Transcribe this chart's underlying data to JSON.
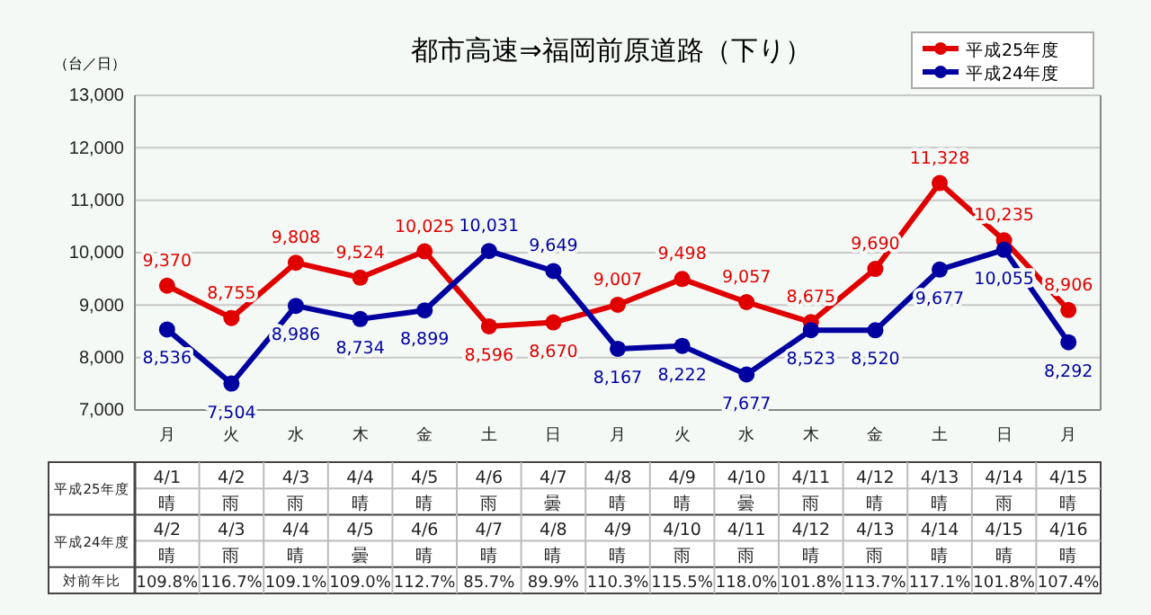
{
  "chart_data": [
    {
      "type": "line",
      "title": "都市高速⇒福岡前原道路（下り）",
      "ylabel": "（台／日）",
      "categories": [
        "月",
        "火",
        "水",
        "木",
        "金",
        "土",
        "日",
        "月",
        "火",
        "水",
        "木",
        "金",
        "土",
        "日",
        "月"
      ],
      "series": [
        {
          "name": "平成25年度",
          "color": "#e00000",
          "values": [
            9370,
            8755,
            9808,
            9524,
            10025,
            8596,
            8670,
            9007,
            9498,
            9057,
            8675,
            9690,
            11328,
            10235,
            8906
          ],
          "value_labels": [
            "9,370",
            "8,755",
            "9,808",
            "9,524",
            "10,025",
            "8,596",
            "8,670",
            "9,007",
            "9,498",
            "9,057",
            "8,675",
            "9,690",
            "11,328",
            "10,235",
            "8,906"
          ]
        },
        {
          "name": "平成24年度",
          "color": "#0000a0",
          "values": [
            8536,
            7504,
            8986,
            8734,
            8899,
            10031,
            9649,
            8167,
            8222,
            7677,
            8523,
            8520,
            9677,
            10055,
            8292
          ],
          "value_labels": [
            "8,536",
            "7,504",
            "8,986",
            "8,734",
            "8,899",
            "10,031",
            "9,649",
            "8,167",
            "8,222",
            "7,677",
            "8,523",
            "8,520",
            "9,677",
            "10,055",
            "8,292"
          ]
        }
      ],
      "ylim": [
        7000,
        13000
      ],
      "yticks": [
        {
          "value": 7000,
          "label": "7,000"
        },
        {
          "value": 8000,
          "label": "8,000"
        },
        {
          "value": 9000,
          "label": "9,000"
        },
        {
          "value": 10000,
          "label": "10,000"
        },
        {
          "value": 11000,
          "label": "11,000"
        },
        {
          "value": 12000,
          "label": "12,000"
        },
        {
          "value": 13000,
          "label": "13,000"
        }
      ],
      "grid": "y",
      "legend": "top right",
      "marker": "circle",
      "line_style": "solid"
    },
    {
      "type": "other",
      "y_categories": [
        "平成25年度",
        "平成24年度",
        "対前年比"
      ],
      "cell_labels": [
        [
          "4/1",
          "4/2",
          "4/3",
          "4/4",
          "4/5",
          "4/6",
          "4/7",
          "4/8",
          "4/9",
          "4/10",
          "4/11",
          "4/12",
          "4/13",
          "4/14",
          "4/15"
        ],
        [
          "晴",
          "雨",
          "雨",
          "晴",
          "晴",
          "雨",
          "曇",
          "晴",
          "晴",
          "曇",
          "雨",
          "晴",
          "晴",
          "雨",
          "晴"
        ],
        [
          "4/2",
          "4/3",
          "4/4",
          "4/5",
          "4/6",
          "4/7",
          "4/8",
          "4/9",
          "4/10",
          "4/11",
          "4/12",
          "4/13",
          "4/14",
          "4/15",
          "4/16"
        ],
        [
          "晴",
          "雨",
          "晴",
          "曇",
          "晴",
          "晴",
          "晴",
          "晴",
          "雨",
          "雨",
          "晴",
          "雨",
          "晴",
          "晴",
          "晴"
        ],
        [
          "109.8%",
          "116.7%",
          "109.1%",
          "109.0%",
          "112.7%",
          "85.7%",
          "89.9%",
          "110.3%",
          "115.5%",
          "118.0%",
          "101.8%",
          "113.7%",
          "117.1%",
          "101.8%",
          "107.4%"
        ]
      ]
    }
  ]
}
